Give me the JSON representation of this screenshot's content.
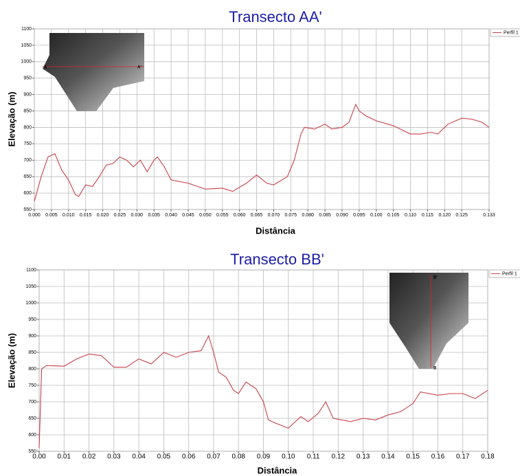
{
  "chart_data": [
    {
      "type": "line",
      "title": "Transecto AA'",
      "xlabel": "Distância",
      "ylabel": "Elevação (m)",
      "x": [
        0,
        0.002,
        0.004,
        0.006,
        0.008,
        0.01,
        0.012,
        0.013,
        0.015,
        0.017,
        0.019,
        0.021,
        0.023,
        0.025,
        0.027,
        0.029,
        0.031,
        0.033,
        0.035,
        0.036,
        0.038,
        0.04,
        0.045,
        0.05,
        0.055,
        0.058,
        0.062,
        0.065,
        0.068,
        0.07,
        0.074,
        0.076,
        0.078,
        0.079,
        0.082,
        0.085,
        0.087,
        0.09,
        0.092,
        0.094,
        0.095,
        0.097,
        0.1,
        0.105,
        0.11,
        0.113,
        0.116,
        0.118,
        0.121,
        0.125,
        0.128,
        0.131,
        0.133
      ],
      "series": [
        {
          "name": "Perfil 1",
          "color": "#c8404a",
          "values": [
            575,
            650,
            710,
            720,
            670,
            640,
            595,
            590,
            625,
            620,
            650,
            685,
            690,
            710,
            700,
            680,
            700,
            665,
            700,
            710,
            680,
            640,
            630,
            612,
            615,
            605,
            630,
            655,
            630,
            625,
            650,
            700,
            780,
            800,
            795,
            810,
            795,
            800,
            815,
            870,
            850,
            835,
            820,
            805,
            780,
            780,
            785,
            780,
            810,
            828,
            825,
            815,
            800
          ]
        }
      ],
      "xlim": [
        0,
        0.133
      ],
      "xticks": [
        {
          "value": 0,
          "label": "0.000"
        },
        {
          "value": 0.005,
          "label": "0.005"
        },
        {
          "value": 0.01,
          "label": "0.010"
        },
        {
          "value": 0.015,
          "label": "0.015"
        },
        {
          "value": 0.02,
          "label": "0.020"
        },
        {
          "value": 0.025,
          "label": "0.025"
        },
        {
          "value": 0.03,
          "label": "0.030"
        },
        {
          "value": 0.035,
          "label": "0.035"
        },
        {
          "value": 0.04,
          "label": "0.040"
        },
        {
          "value": 0.045,
          "label": "0.045"
        },
        {
          "value": 0.05,
          "label": "0.050"
        },
        {
          "value": 0.055,
          "label": "0.055"
        },
        {
          "value": 0.06,
          "label": "0.060"
        },
        {
          "value": 0.065,
          "label": "0.065"
        },
        {
          "value": 0.07,
          "label": "0.070"
        },
        {
          "value": 0.075,
          "label": "0.075"
        },
        {
          "value": 0.08,
          "label": "0.080"
        },
        {
          "value": 0.085,
          "label": "0.085"
        },
        {
          "value": 0.09,
          "label": "0.090"
        },
        {
          "value": 0.095,
          "label": "0.095"
        },
        {
          "value": 0.1,
          "label": "0.100"
        },
        {
          "value": 0.105,
          "label": "0.105"
        },
        {
          "value": 0.11,
          "label": "0.110"
        },
        {
          "value": 0.115,
          "label": "0.115"
        },
        {
          "value": 0.12,
          "label": "0.120"
        },
        {
          "value": 0.125,
          "label": "0.125"
        },
        0.133
      ],
      "ylim": [
        550,
        1100
      ],
      "yticks": [
        550,
        600,
        650,
        700,
        750,
        800,
        850,
        900,
        950,
        1000,
        1050,
        1100
      ],
      "grid": true,
      "legend": "right",
      "map_labels": [
        "A",
        "A'"
      ]
    },
    {
      "type": "line",
      "title": "Transecto BB'",
      "xlabel": "Distância",
      "ylabel": "Elevação (m)",
      "x": [
        0,
        0.001,
        0.003,
        0.01,
        0.015,
        0.02,
        0.025,
        0.03,
        0.035,
        0.04,
        0.045,
        0.05,
        0.055,
        0.06,
        0.065,
        0.068,
        0.07,
        0.072,
        0.075,
        0.078,
        0.08,
        0.083,
        0.087,
        0.09,
        0.092,
        0.095,
        0.1,
        0.105,
        0.108,
        0.112,
        0.115,
        0.118,
        0.125,
        0.13,
        0.135,
        0.14,
        0.145,
        0.15,
        0.153,
        0.16,
        0.165,
        0.17,
        0.175,
        0.18
      ],
      "series": [
        {
          "name": "Perfil 1",
          "color": "#c8404a",
          "values": [
            560,
            800,
            810,
            808,
            830,
            845,
            840,
            805,
            805,
            830,
            815,
            850,
            835,
            850,
            855,
            900,
            850,
            790,
            775,
            735,
            725,
            760,
            740,
            700,
            645,
            635,
            620,
            655,
            640,
            665,
            700,
            650,
            640,
            650,
            645,
            660,
            670,
            695,
            730,
            720,
            725,
            725,
            710,
            735
          ]
        }
      ],
      "xlim": [
        0,
        0.18
      ],
      "xticks": [
        {
          "value": 0,
          "label": "0.00"
        },
        0.01,
        0.02,
        0.03,
        0.04,
        0.05,
        0.06,
        0.07,
        0.08,
        0.09,
        {
          "value": 0.1,
          "label": "0.10"
        },
        0.11,
        0.12,
        0.13,
        0.14,
        0.15,
        0.16,
        0.17,
        0.18
      ],
      "ylim": [
        550,
        1100
      ],
      "yticks": [
        550,
        600,
        650,
        700,
        750,
        800,
        850,
        900,
        950,
        1000,
        1050,
        1100
      ],
      "grid": true,
      "legend": "right",
      "map_labels": [
        "B'",
        "B"
      ]
    }
  ]
}
